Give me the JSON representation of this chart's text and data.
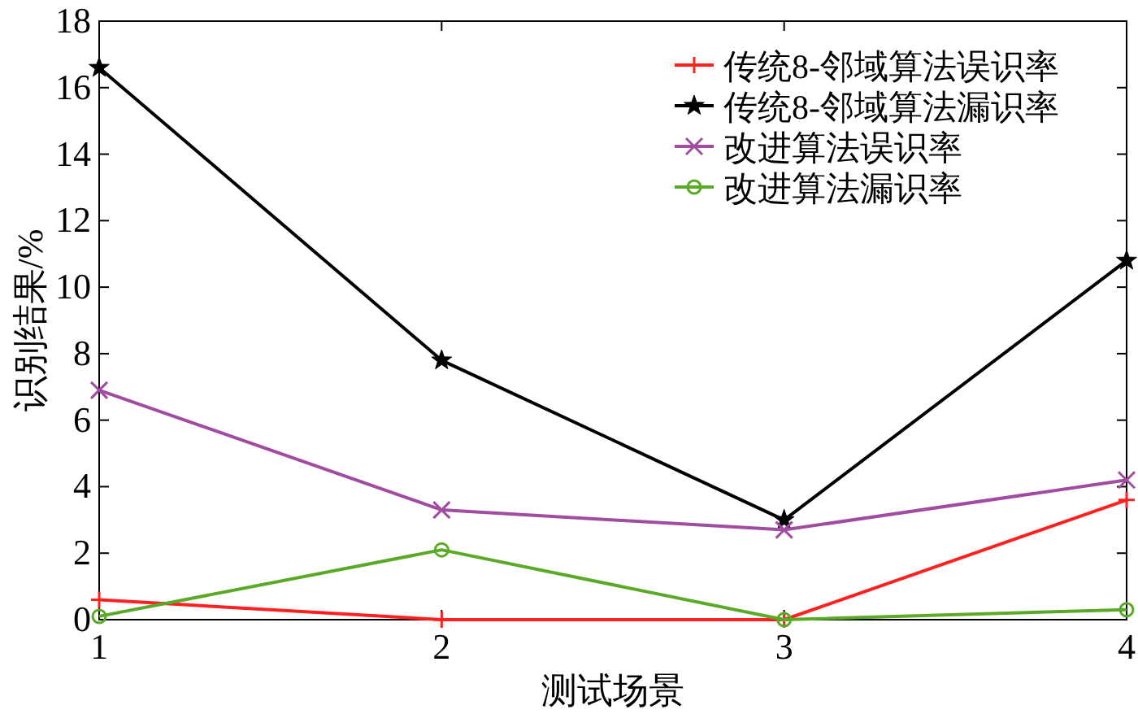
{
  "chart_data": {
    "type": "line",
    "xlabel": "测试场景",
    "ylabel": "识别结果/%",
    "x": [
      1,
      2,
      3,
      4
    ],
    "xlim": [
      1,
      4
    ],
    "xticks": [
      1,
      2,
      3,
      4
    ],
    "ylim": [
      0,
      18
    ],
    "yticks": [
      0,
      2,
      4,
      6,
      8,
      10,
      12,
      14,
      16,
      18
    ],
    "grid": false,
    "legend": "top right",
    "line_style": "solid",
    "series": [
      {
        "name": "传统8-邻域算法误识率",
        "color": "#ff2020",
        "marker": "plus",
        "values": [
          0.6,
          0,
          0,
          3.6
        ]
      },
      {
        "name": "传统8-邻域算法漏识率",
        "color": "#000000",
        "marker": "star",
        "values": [
          16.6,
          7.8,
          3.0,
          10.8
        ]
      },
      {
        "name": "改进算法误识率",
        "color": "#a04ca0",
        "marker": "cross",
        "values": [
          6.9,
          3.3,
          2.7,
          4.2
        ]
      },
      {
        "name": "改进算法漏识率",
        "color": "#5aaa28",
        "marker": "circle",
        "values": [
          0.1,
          2.1,
          0,
          0.3
        ]
      }
    ]
  }
}
